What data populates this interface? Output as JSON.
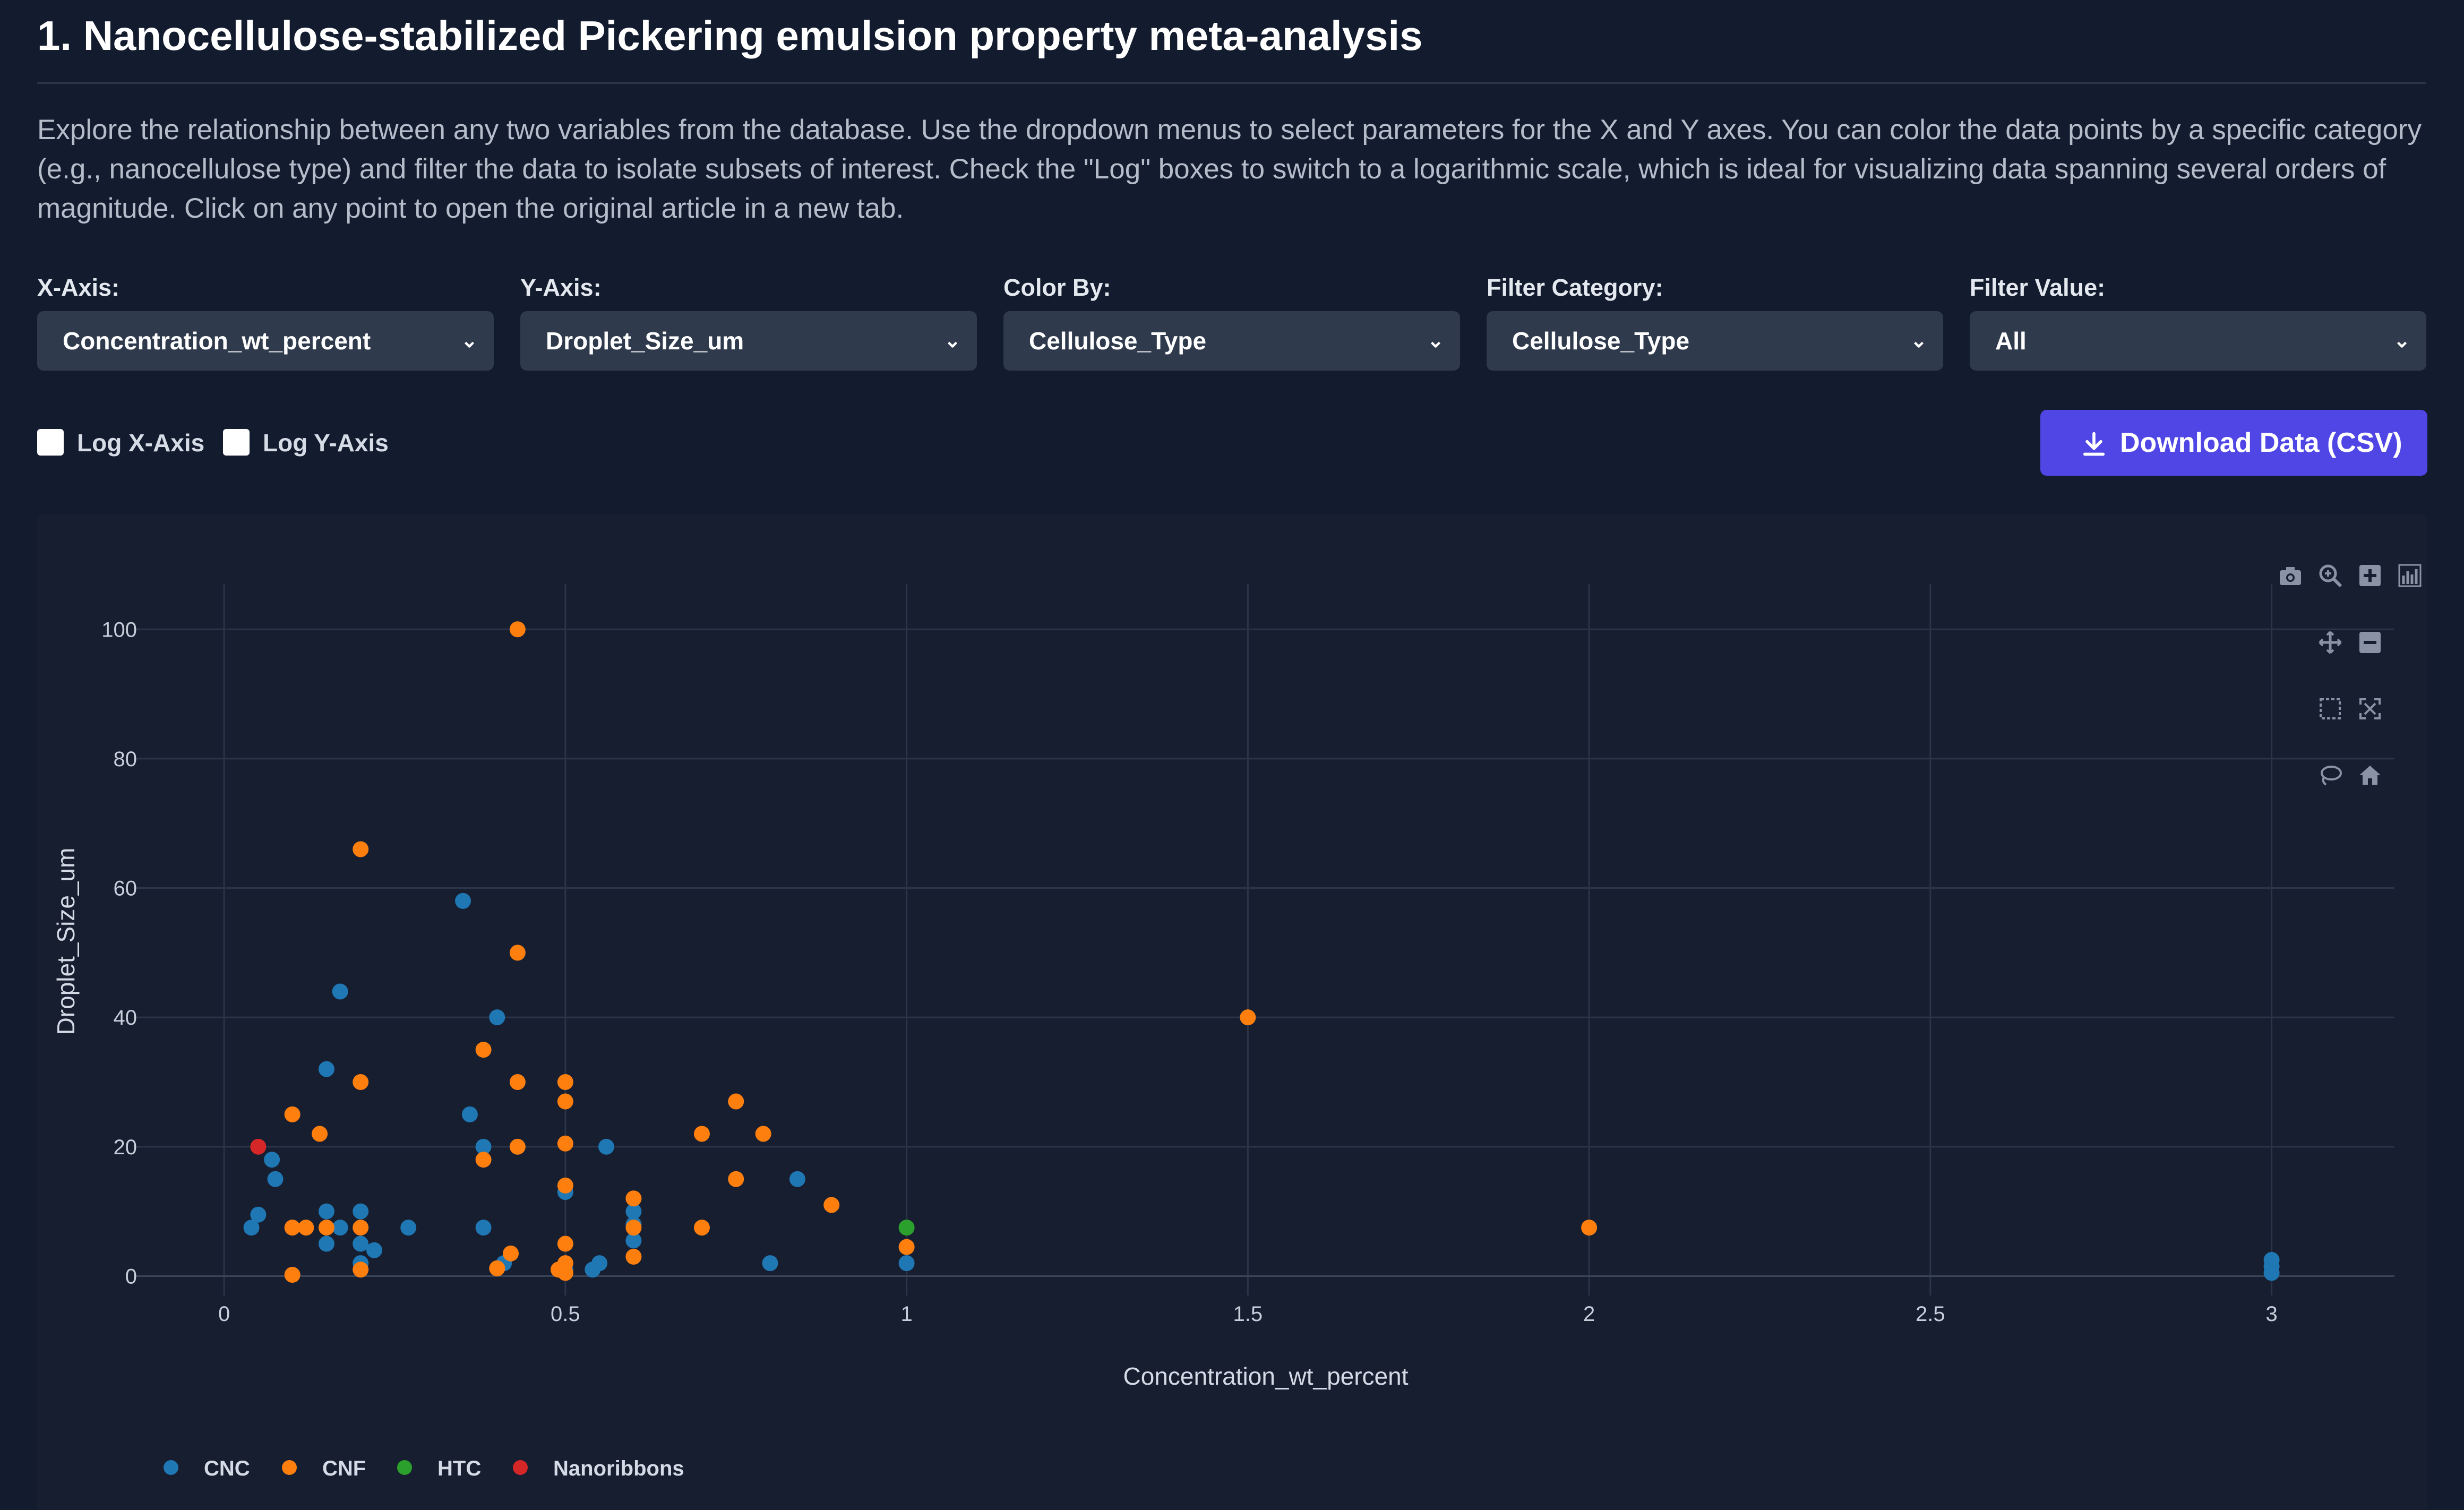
{
  "page": {
    "title": "1. Nanocellulose-stabilized Pickering emulsion property meta-analysis",
    "description": "Explore the relationship between any two variables from the database. Use the dropdown menus to select parameters for the X and Y axes. You can color the data points by a specific category (e.g., nanocellulose type) and filter the data to isolate subsets of interest. Check the \"Log\" boxes to switch to a logarithmic scale, which is ideal for visualizing data spanning several orders of magnitude. Click on any point to open the original article in a new tab."
  },
  "controls": {
    "x_axis": {
      "label": "X-Axis:",
      "value": "Concentration_wt_percent"
    },
    "y_axis": {
      "label": "Y-Axis:",
      "value": "Droplet_Size_um"
    },
    "color_by": {
      "label": "Color By:",
      "value": "Cellulose_Type"
    },
    "filter_category": {
      "label": "Filter Category:",
      "value": "Cellulose_Type"
    },
    "filter_value": {
      "label": "Filter Value:",
      "value": "All"
    },
    "log_x": {
      "label": "Log X-Axis",
      "checked": false
    },
    "log_y": {
      "label": "Log Y-Axis",
      "checked": false
    },
    "download_label": "Download Data (CSV)"
  },
  "modebar": [
    "camera-icon",
    "zoom-icon",
    "zoom-in-icon",
    "autoscale-icon",
    "pan-icon",
    "zoom-out-icon",
    "box-select-icon",
    "reset-axes-icon",
    "lasso-icon",
    "home-icon"
  ],
  "colors": {
    "CNC": "#1f77b4",
    "CNF": "#ff7f0e",
    "HTC": "#2ca02c",
    "Nanoribbons": "#d62728",
    "accent": "#4f46e5"
  },
  "chart_data": {
    "type": "scatter",
    "xlabel": "Concentration_wt_percent",
    "ylabel": "Droplet_Size_um",
    "xlim": [
      -0.13,
      3.18
    ],
    "ylim": [
      -3,
      107
    ],
    "xticks": [
      0,
      0.5,
      1,
      1.5,
      2,
      2.5,
      3
    ],
    "xtick_labels": [
      "0",
      "0.5",
      "1",
      "1.5",
      "2",
      "2.5",
      "3"
    ],
    "yticks": [
      0,
      20,
      40,
      60,
      80,
      100
    ],
    "ytick_labels": [
      "0",
      "20",
      "40",
      "60",
      "80",
      "100"
    ],
    "grid": true,
    "legend_position": "bottom-left",
    "series": [
      {
        "name": "CNC",
        "points": [
          [
            0.04,
            7.5
          ],
          [
            0.05,
            9.5
          ],
          [
            0.07,
            18
          ],
          [
            0.075,
            15
          ],
          [
            0.15,
            32
          ],
          [
            0.15,
            10
          ],
          [
            0.15,
            5
          ],
          [
            0.17,
            7.5
          ],
          [
            0.17,
            44
          ],
          [
            0.2,
            10
          ],
          [
            0.2,
            5
          ],
          [
            0.2,
            2
          ],
          [
            0.22,
            4
          ],
          [
            0.27,
            7.5
          ],
          [
            0.35,
            58
          ],
          [
            0.36,
            25
          ],
          [
            0.38,
            20
          ],
          [
            0.38,
            7.5
          ],
          [
            0.4,
            40
          ],
          [
            0.41,
            2
          ],
          [
            0.5,
            13
          ],
          [
            0.5,
            1
          ],
          [
            0.54,
            1
          ],
          [
            0.55,
            2
          ],
          [
            0.56,
            20
          ],
          [
            0.6,
            10
          ],
          [
            0.6,
            8
          ],
          [
            0.6,
            5.5
          ],
          [
            0.8,
            2
          ],
          [
            0.84,
            15
          ],
          [
            1.0,
            2
          ],
          [
            3.0,
            2.5
          ],
          [
            3.0,
            1.5
          ],
          [
            3.0,
            0.5
          ]
        ]
      },
      {
        "name": "CNF",
        "points": [
          [
            0.1,
            25
          ],
          [
            0.1,
            7.5
          ],
          [
            0.1,
            0.2
          ],
          [
            0.12,
            7.5
          ],
          [
            0.14,
            22
          ],
          [
            0.15,
            7.5
          ],
          [
            0.2,
            66
          ],
          [
            0.2,
            30
          ],
          [
            0.2,
            7.5
          ],
          [
            0.2,
            1
          ],
          [
            0.38,
            35
          ],
          [
            0.38,
            18
          ],
          [
            0.4,
            1.2
          ],
          [
            0.42,
            3.5
          ],
          [
            0.43,
            100
          ],
          [
            0.43,
            50
          ],
          [
            0.43,
            30
          ],
          [
            0.43,
            20
          ],
          [
            0.49,
            1
          ],
          [
            0.5,
            30
          ],
          [
            0.5,
            27
          ],
          [
            0.5,
            20.5
          ],
          [
            0.5,
            14
          ],
          [
            0.5,
            5
          ],
          [
            0.5,
            2
          ],
          [
            0.5,
            0.5
          ],
          [
            0.6,
            12
          ],
          [
            0.6,
            7.5
          ],
          [
            0.6,
            3
          ],
          [
            0.7,
            22
          ],
          [
            0.7,
            7.5
          ],
          [
            0.75,
            27
          ],
          [
            0.75,
            15
          ],
          [
            0.79,
            22
          ],
          [
            0.89,
            11
          ],
          [
            1.0,
            4.5
          ],
          [
            1.5,
            40
          ],
          [
            2.0,
            7.5
          ]
        ]
      },
      {
        "name": "HTC",
        "points": [
          [
            1.0,
            7.5
          ]
        ]
      },
      {
        "name": "Nanoribbons",
        "points": [
          [
            0.05,
            20
          ]
        ]
      }
    ]
  }
}
